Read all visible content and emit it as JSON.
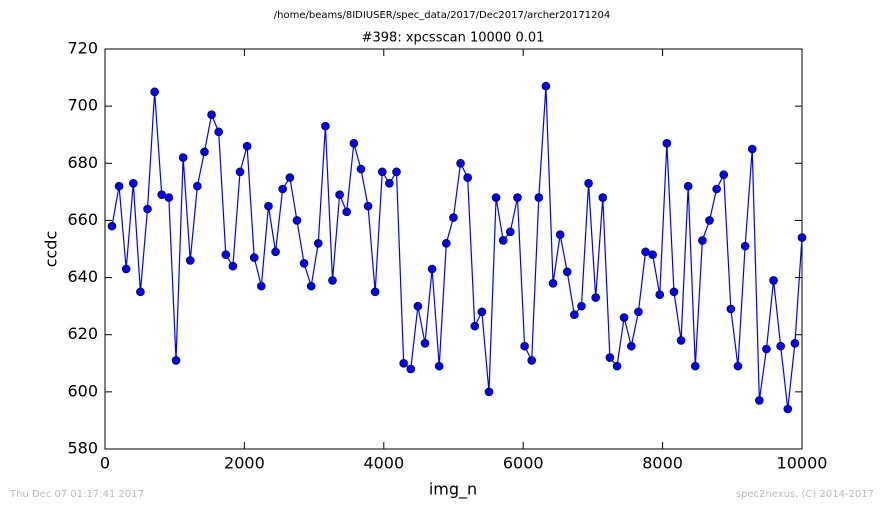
{
  "chart_data": {
    "type": "line",
    "suptitle": "/home/beams/8IDIUSER/spec_data/2017/Dec2017/archer20171204",
    "title": "#398: xpcsscan 10000 0.01",
    "xlabel": "img_n",
    "ylabel": "ccdc",
    "footer_left": "Thu Dec 07 01:17:41 2017",
    "footer_right": "spec2nexus, (C) 2014-2017",
    "xlim": [
      0,
      10000
    ],
    "xticks": [
      0,
      2000,
      4000,
      6000,
      8000,
      10000
    ],
    "ylim": [
      580,
      720
    ],
    "yticks": [
      580,
      600,
      620,
      640,
      660,
      680,
      700,
      720
    ],
    "grid": false,
    "x": [
      100,
      202,
      304,
      406,
      508,
      610,
      712,
      814,
      916,
      1019,
      1121,
      1223,
      1325,
      1427,
      1529,
      1631,
      1733,
      1835,
      1937,
      2039,
      2141,
      2243,
      2345,
      2447,
      2549,
      2652,
      2754,
      2856,
      2958,
      3060,
      3162,
      3264,
      3366,
      3468,
      3570,
      3672,
      3774,
      3876,
      3978,
      4080,
      4182,
      4285,
      4387,
      4489,
      4591,
      4693,
      4795,
      4897,
      4999,
      5101,
      5203,
      5305,
      5407,
      5509,
      5611,
      5713,
      5815,
      5918,
      6020,
      6122,
      6224,
      6326,
      6428,
      6530,
      6632,
      6734,
      6836,
      6938,
      7040,
      7142,
      7244,
      7346,
      7448,
      7551,
      7653,
      7755,
      7857,
      7959,
      8061,
      8163,
      8265,
      8367,
      8469,
      8571,
      8673,
      8775,
      8877,
      8979,
      9081,
      9184,
      9286,
      9388,
      9490,
      9592,
      9694,
      9796,
      9898,
      10000
    ],
    "series": [
      {
        "name": "ccdc",
        "color": "#0000ff",
        "values": [
          658,
          672,
          643,
          673,
          635,
          664,
          705,
          669,
          668,
          611,
          682,
          646,
          672,
          684,
          697,
          691,
          648,
          644,
          677,
          686,
          647,
          637,
          665,
          649,
          671,
          675,
          660,
          645,
          637,
          652,
          693,
          639,
          669,
          663,
          687,
          678,
          665,
          635,
          677,
          673,
          677,
          610,
          608,
          630,
          617,
          643,
          609,
          652,
          661,
          680,
          675,
          623,
          628,
          600,
          668,
          653,
          656,
          668,
          616,
          611,
          668,
          707,
          638,
          655,
          642,
          627,
          630,
          673,
          633,
          668,
          612,
          609,
          626,
          616,
          628,
          649,
          648,
          634,
          687,
          635,
          618,
          672,
          609,
          653,
          660,
          671,
          676,
          629,
          609,
          651,
          685,
          597,
          615,
          639,
          616,
          594,
          617,
          654
        ]
      }
    ]
  }
}
